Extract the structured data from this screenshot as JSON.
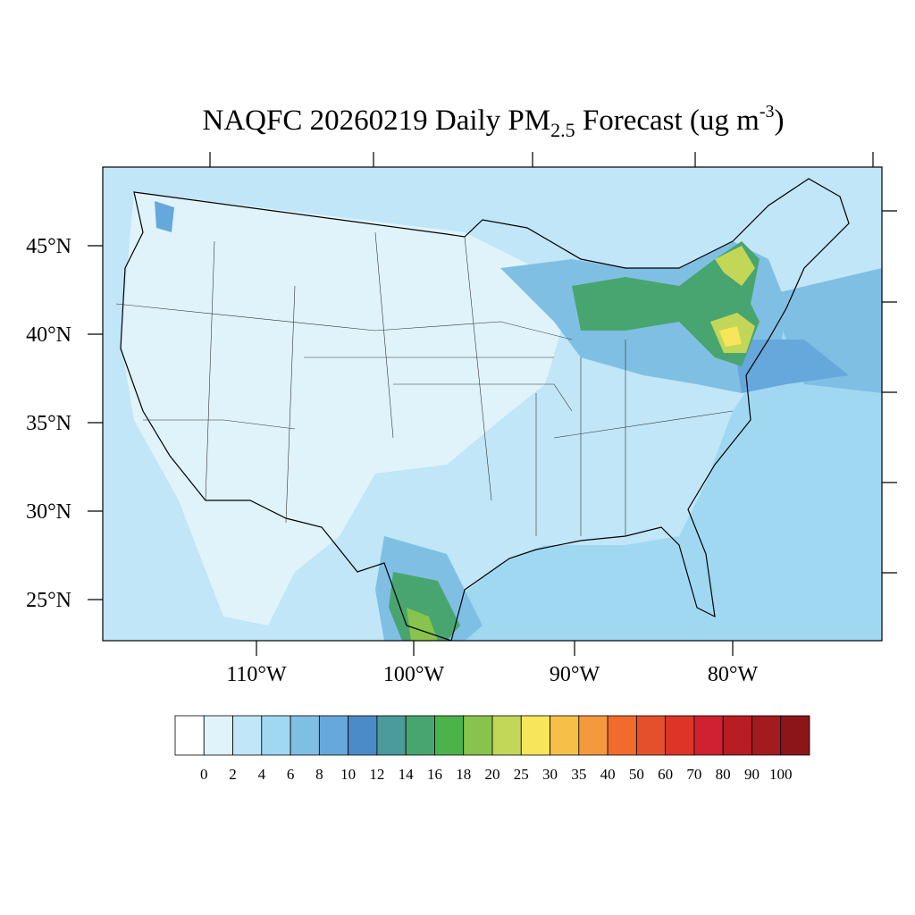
{
  "title": {
    "main": "NAQFC 20260219 Daily PM",
    "subscript": "2.5",
    "rest": " Forecast (ug m",
    "superscript": "-3",
    "close": ")"
  },
  "lat_labels": [
    "45°N",
    "40°N",
    "35°N",
    "30°N",
    "25°N"
  ],
  "lon_labels": [
    "110°W",
    "100°W",
    "90°W",
    "80°W"
  ],
  "colorbar": {
    "levels": [
      0,
      2,
      4,
      6,
      8,
      10,
      12,
      14,
      16,
      18,
      20,
      25,
      30,
      35,
      40,
      50,
      60,
      70,
      80,
      90,
      100
    ],
    "colors": [
      "#ffffff",
      "#e0f3fb",
      "#c0e6f7",
      "#a0d8f2",
      "#80bfe4",
      "#66a8db",
      "#4a8bc8",
      "#4b9b9b",
      "#48a570",
      "#4bb34a",
      "#88c44c",
      "#c2d758",
      "#f7e65c",
      "#f6bf48",
      "#f5993d",
      "#f06b2c",
      "#e5502c",
      "#dc3527",
      "#cf2130",
      "#b81d24",
      "#a31a1f",
      "#8b1519"
    ]
  }
}
